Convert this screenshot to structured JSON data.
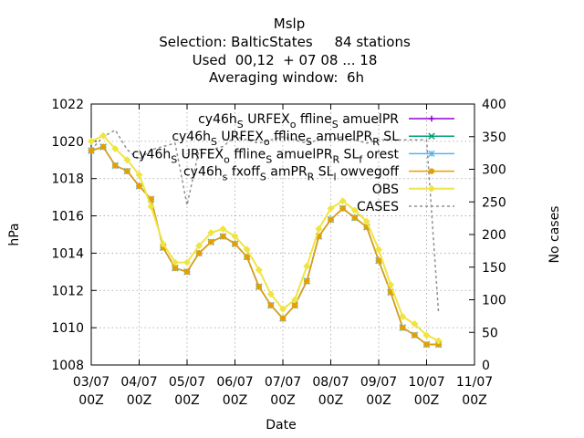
{
  "title_lines": [
    "Mslp",
    "Selection: BalticStates     84 stations",
    "Used  00,12  + 07 08 ... 18",
    "Averaging window:  6h"
  ],
  "chart_data": {
    "type": "line",
    "xlabel": "Date",
    "ylabel": "hPa",
    "y2label": "No cases",
    "ylim": [
      1008,
      1022
    ],
    "y2lim": [
      0,
      400
    ],
    "xlim_days": [
      3,
      11
    ],
    "x_ticks": [
      {
        "day": 3,
        "l1": "03/07",
        "l2": "00Z"
      },
      {
        "day": 4,
        "l1": "04/07",
        "l2": "00Z"
      },
      {
        "day": 5,
        "l1": "05/07",
        "l2": "00Z"
      },
      {
        "day": 6,
        "l1": "06/07",
        "l2": "00Z"
      },
      {
        "day": 7,
        "l1": "07/07",
        "l2": "00Z"
      },
      {
        "day": 8,
        "l1": "08/07",
        "l2": "00Z"
      },
      {
        "day": 9,
        "l1": "09/07",
        "l2": "00Z"
      },
      {
        "day": 10,
        "l1": "10/07",
        "l2": "00Z"
      },
      {
        "day": 11,
        "l1": "11/07",
        "l2": "00Z"
      }
    ],
    "y_ticks": [
      "1008",
      "1010",
      "1012",
      "1014",
      "1016",
      "1018",
      "1020",
      "1022"
    ],
    "y2_ticks": [
      "0",
      "50",
      "100",
      "150",
      "200",
      "250",
      "300",
      "350",
      "400"
    ],
    "grid": true,
    "legend_position": "top-right",
    "x_days": [
      3.0,
      3.25,
      3.5,
      3.75,
      4.0,
      4.25,
      4.5,
      4.75,
      5.0,
      5.25,
      5.5,
      5.75,
      6.0,
      6.25,
      6.5,
      6.75,
      7.0,
      7.25,
      7.5,
      7.75,
      8.0,
      8.25,
      8.5,
      8.75,
      9.0,
      9.25,
      9.5,
      9.75,
      10.0,
      10.25
    ],
    "series": [
      {
        "name": "cy46h_S URFEX_o ffline_S amuelPR",
        "axis": "y1",
        "color": "#9400d3",
        "marker": "plus",
        "width": 1.5,
        "values": [
          1019.5,
          1019.7,
          1018.7,
          1018.4,
          1017.6,
          1016.9,
          1014.3,
          1013.2,
          1013.0,
          1014.0,
          1014.6,
          1014.9,
          1014.5,
          1013.8,
          1012.2,
          1011.2,
          1010.5,
          1011.2,
          1012.5,
          1014.9,
          1015.8,
          1016.4,
          1015.9,
          1015.4,
          1013.6,
          1011.9,
          1010.0,
          1009.6,
          1009.1,
          1009.1
        ]
      },
      {
        "name": "cy46h_S URFEX_o ffline_S amuelPR_R SL",
        "axis": "y1",
        "color": "#009e73",
        "marker": "x",
        "width": 1.5,
        "values": [
          1019.5,
          1019.7,
          1018.7,
          1018.4,
          1017.6,
          1016.9,
          1014.3,
          1013.2,
          1013.0,
          1014.0,
          1014.6,
          1014.9,
          1014.5,
          1013.8,
          1012.2,
          1011.2,
          1010.5,
          1011.2,
          1012.5,
          1014.9,
          1015.8,
          1016.4,
          1015.9,
          1015.4,
          1013.6,
          1011.9,
          1010.0,
          1009.6,
          1009.1,
          1009.1
        ]
      },
      {
        "name": "cy46h_S URFEX_o ffline_S amuelPR_R SL_f orest",
        "axis": "y1",
        "color": "#56b4e9",
        "marker": "star",
        "width": 1.5,
        "values": [
          1019.5,
          1019.7,
          1018.7,
          1018.4,
          1017.6,
          1016.9,
          1014.3,
          1013.2,
          1013.0,
          1014.0,
          1014.6,
          1014.9,
          1014.5,
          1013.8,
          1012.2,
          1011.2,
          1010.5,
          1011.2,
          1012.5,
          1014.9,
          1015.8,
          1016.4,
          1015.9,
          1015.4,
          1013.6,
          1011.9,
          1010.0,
          1009.6,
          1009.1,
          1009.1
        ]
      },
      {
        "name": "cy46h_s fxoff_S amPR_R SL_l owvegoff",
        "axis": "y1",
        "color": "#e69f00",
        "marker": "dot",
        "width": 1.5,
        "values": [
          1019.5,
          1019.7,
          1018.7,
          1018.4,
          1017.6,
          1016.9,
          1014.3,
          1013.2,
          1013.0,
          1014.0,
          1014.6,
          1014.9,
          1014.5,
          1013.8,
          1012.2,
          1011.2,
          1010.5,
          1011.2,
          1012.5,
          1014.9,
          1015.8,
          1016.4,
          1015.9,
          1015.4,
          1013.6,
          1011.9,
          1010.0,
          1009.6,
          1009.1,
          1009.1
        ]
      },
      {
        "name": "OBS",
        "axis": "y1",
        "color": "#f0e442",
        "marker": "diamond",
        "width": 2,
        "values": [
          1020.0,
          1020.3,
          1019.6,
          1019.0,
          1018.2,
          1016.5,
          1014.5,
          1013.5,
          1013.5,
          1014.4,
          1015.1,
          1015.3,
          1014.9,
          1014.2,
          1013.1,
          1011.8,
          1011.0,
          1011.5,
          1013.3,
          1015.3,
          1016.4,
          1016.8,
          1016.3,
          1015.7,
          1014.2,
          1012.3,
          1010.6,
          1010.2,
          1009.6,
          1009.3
        ]
      },
      {
        "name": "CASES",
        "axis": "y2",
        "color": "#909090",
        "marker": "none",
        "width": 1.5,
        "dashed": true,
        "values": [
          330,
          350,
          360,
          330,
          315,
          330,
          335,
          340,
          245,
          330,
          330,
          335,
          350,
          345,
          340,
          345,
          350,
          345,
          340,
          345,
          345,
          350,
          345,
          340,
          345,
          345,
          345,
          345,
          345,
          80
        ]
      }
    ]
  }
}
